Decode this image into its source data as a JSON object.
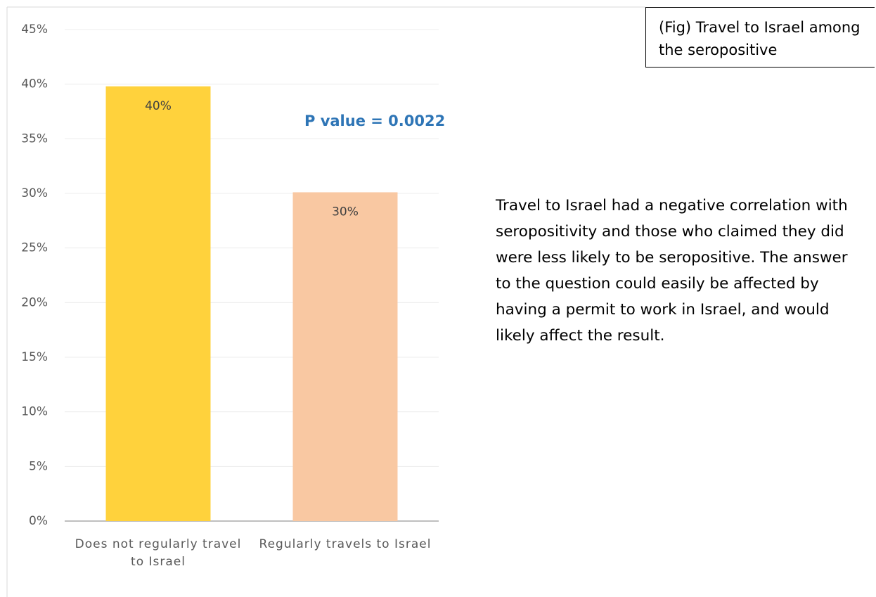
{
  "chart_data": {
    "type": "bar",
    "title": "(Fig) Travel to Israel among the seropositive",
    "annotation": "P value = 0.0022",
    "description": "Travel to Israel had a negative correlation with seropositivity and those who claimed they did were less likely to be seropositive. The answer to the question could easily be affected by having a permit to work in Israel, and would likely affect the result.",
    "categories": [
      "Does not regularly travel to Israel",
      "Regularly travels to Israel"
    ],
    "values": [
      39.8,
      30.1
    ],
    "value_labels": [
      "40%",
      "30%"
    ],
    "colors": [
      "#ffd23c",
      "#f9c8a2"
    ],
    "ylim": [
      0,
      45
    ],
    "yticks": [
      {
        "value": 0,
        "label": "0%"
      },
      {
        "value": 5,
        "label": "5%"
      },
      {
        "value": 10,
        "label": "10%"
      },
      {
        "value": 15,
        "label": "15%"
      },
      {
        "value": 20,
        "label": "20%"
      },
      {
        "value": 25,
        "label": "25%"
      },
      {
        "value": 30,
        "label": "30%"
      },
      {
        "value": 35,
        "label": "35%"
      },
      {
        "value": 40,
        "label": "40%"
      },
      {
        "value": 45,
        "label": "45%"
      }
    ],
    "grid": true
  }
}
